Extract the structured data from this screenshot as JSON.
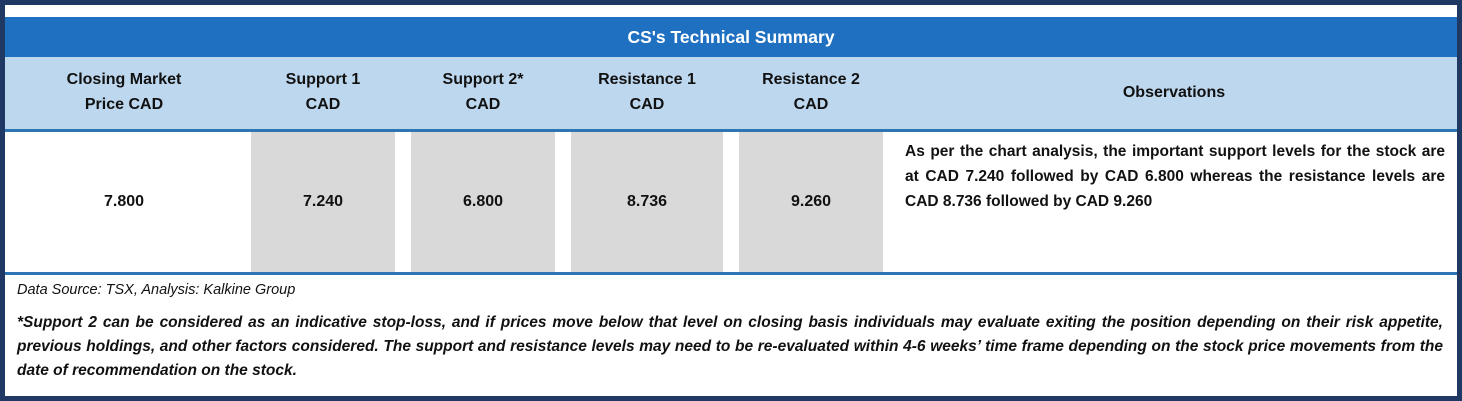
{
  "table": {
    "title": "CS's Technical Summary",
    "columns": [
      {
        "line1": "Closing Market",
        "line2": "Price CAD"
      },
      {
        "line1": "Support 1",
        "line2": "CAD"
      },
      {
        "line1": "Support 2*",
        "line2": "CAD"
      },
      {
        "line1": "Resistance 1",
        "line2": "CAD"
      },
      {
        "line1": "Resistance 2",
        "line2": "CAD"
      },
      {
        "line1": "Observations",
        "line2": ""
      }
    ],
    "values": {
      "closing_market_price": "7.800",
      "support_1": "7.240",
      "support_2": "6.800",
      "resistance_1": "8.736",
      "resistance_2": "9.260"
    },
    "observations": "As per the chart analysis, the important support levels for the stock are at CAD 7.240 followed by CAD 6.800 whereas the resistance levels are CAD 8.736 followed by CAD 9.260"
  },
  "footer": {
    "data_source": "Data Source: TSX, Analysis: Kalkine Group",
    "footnote": "*Support 2 can be considered as an indicative stop-loss, and if prices move below that level on closing basis individuals may evaluate exiting the position depending on their risk appetite, previous holdings, and other factors considered. The support and resistance levels may need to be re-evaluated within 4-6 weeks’ time frame depending on the stock price movements from the date of recommendation on the stock."
  },
  "colors": {
    "border_navy": "#1f3864",
    "title_blue": "#1f70c1",
    "header_blue": "#bdd7ee",
    "line_blue": "#2e75b6",
    "cell_gray": "#d9d9d9",
    "text_dark": "#111111"
  }
}
